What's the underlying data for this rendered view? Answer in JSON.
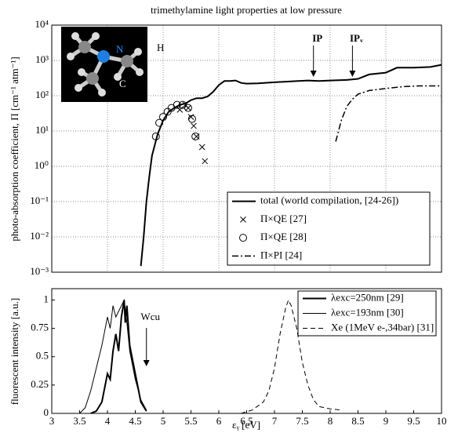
{
  "chart_data": [
    {
      "type": "line",
      "title": "trimethylamine light properties at low pressure",
      "y_label": "photo-absorption coefficient, Π [cm⁻¹ atm⁻¹]",
      "yscale": "log",
      "grid": true,
      "legend": "lower right",
      "xlim": [
        3,
        10
      ],
      "xticks": [
        3,
        4,
        5,
        6,
        7,
        8,
        9,
        10
      ],
      "ylim": [
        0.001,
        10000
      ],
      "yticks": [
        {
          "value": 0.001,
          "label": "10⁻³"
        },
        {
          "value": 0.01,
          "label": "10⁻²"
        },
        {
          "value": 0.1,
          "label": "10⁻¹"
        },
        {
          "value": 1,
          "label": "10⁰"
        },
        {
          "value": 10,
          "label": "10¹"
        },
        {
          "value": 100,
          "label": "10²"
        },
        {
          "value": 1000,
          "label": "10³"
        },
        {
          "value": 10000,
          "label": "10⁴"
        }
      ],
      "inset_labels": [
        "N",
        "H",
        "C"
      ],
      "annotations": [
        {
          "text": "IP",
          "x": 7.7
        },
        {
          "text": "IPᵥ",
          "x": 8.4
        }
      ],
      "series": [
        {
          "name": "total (world compilation, [24-26])",
          "color": "#000000",
          "style": "solid",
          "width": 2,
          "x": [
            4.6,
            4.65,
            4.7,
            4.75,
            4.8,
            4.9,
            5.0,
            5.1,
            5.2,
            5.3,
            5.4,
            5.5,
            5.6,
            5.7,
            5.8,
            5.9,
            6.0,
            6.1,
            6.2,
            6.3,
            6.4,
            6.5,
            6.7,
            7.0,
            7.3,
            7.6,
            7.8,
            8.0,
            8.3,
            8.5,
            8.7,
            9.0,
            9.2,
            9.5,
            9.8,
            10.0
          ],
          "values": [
            0.0015,
            0.01,
            0.1,
            0.5,
            2,
            8,
            20,
            35,
            45,
            55,
            60,
            75,
            85,
            85,
            95,
            130,
            200,
            260,
            260,
            270,
            230,
            220,
            225,
            240,
            255,
            270,
            260,
            270,
            280,
            300,
            400,
            450,
            620,
            620,
            650,
            750
          ]
        },
        {
          "name": "Π×QE [27]",
          "color": "#000000",
          "marker": "x",
          "x": [
            5.3,
            5.4,
            5.45,
            5.5,
            5.55,
            5.6,
            5.7,
            5.75
          ],
          "values": [
            40,
            55,
            45,
            25,
            14,
            7,
            3.5,
            1.4
          ]
        },
        {
          "name": "Π×QE [28]",
          "color": "#000000",
          "marker": "o",
          "x": [
            4.87,
            4.93,
            5.0,
            5.08,
            5.15,
            5.25,
            5.35,
            5.45,
            5.52,
            5.58
          ],
          "values": [
            7,
            17,
            25,
            35,
            45,
            55,
            55,
            45,
            22,
            7
          ]
        },
        {
          "name": "Π×PI [24]",
          "color": "#000000",
          "style": "dashdot",
          "width": 1.5,
          "x": [
            8.1,
            8.2,
            8.3,
            8.4,
            8.5,
            8.7,
            9.0,
            9.3,
            9.6,
            10.0
          ],
          "values": [
            5,
            20,
            50,
            80,
            110,
            140,
            160,
            180,
            190,
            190
          ]
        }
      ]
    },
    {
      "type": "line",
      "x_label": "εᵧ [eV]",
      "y_label": "fluorescent intensity [a.u.]",
      "grid": false,
      "legend": "upper right",
      "xlim": [
        3,
        10
      ],
      "xticks": [
        3,
        3.5,
        4,
        4.5,
        5,
        5.5,
        6,
        6.5,
        7,
        7.5,
        8,
        8.5,
        9,
        9.5,
        10
      ],
      "ylim": [
        0,
        1.1
      ],
      "yticks": [
        0,
        0.25,
        0.5,
        0.75,
        1
      ],
      "annotations": [
        {
          "text": "Wcu",
          "x": 4.7
        }
      ],
      "series": [
        {
          "name": "λexc=250nm [29]",
          "color": "#000000",
          "style": "solid",
          "width": 2,
          "x": [
            3.7,
            3.8,
            3.9,
            4.0,
            4.05,
            4.1,
            4.15,
            4.2,
            4.25,
            4.3,
            4.32,
            4.35,
            4.4,
            4.5,
            4.6,
            4.7
          ],
          "values": [
            0,
            0.02,
            0.1,
            0.35,
            0.3,
            0.55,
            0.7,
            0.55,
            0.85,
            1.0,
            0.8,
            0.95,
            0.6,
            0.35,
            0.1,
            0.02
          ]
        },
        {
          "name": "λexc=193nm [30]",
          "color": "#000000",
          "style": "solid",
          "width": 1,
          "x": [
            3.5,
            3.6,
            3.7,
            3.8,
            3.9,
            4.0,
            4.05,
            4.1,
            4.15,
            4.2,
            4.25,
            4.3,
            4.35,
            4.4,
            4.5,
            4.6,
            4.7
          ],
          "values": [
            0,
            0.05,
            0.2,
            0.4,
            0.6,
            0.85,
            0.75,
            0.95,
            0.85,
            0.9,
            0.95,
            1.0,
            0.8,
            0.55,
            0.3,
            0.12,
            0.03
          ]
        },
        {
          "name": "Xe (1MeV e-,34bar) [31]",
          "color": "#000000",
          "style": "dashed",
          "width": 1,
          "x": [
            6.4,
            6.6,
            6.8,
            6.9,
            7.0,
            7.1,
            7.2,
            7.25,
            7.3,
            7.4,
            7.5,
            7.6,
            7.7,
            7.8,
            8.0,
            8.2
          ],
          "values": [
            0,
            0.03,
            0.1,
            0.2,
            0.4,
            0.7,
            0.93,
            1.0,
            0.95,
            0.75,
            0.45,
            0.25,
            0.12,
            0.06,
            0.04,
            0.03
          ]
        }
      ]
    }
  ]
}
